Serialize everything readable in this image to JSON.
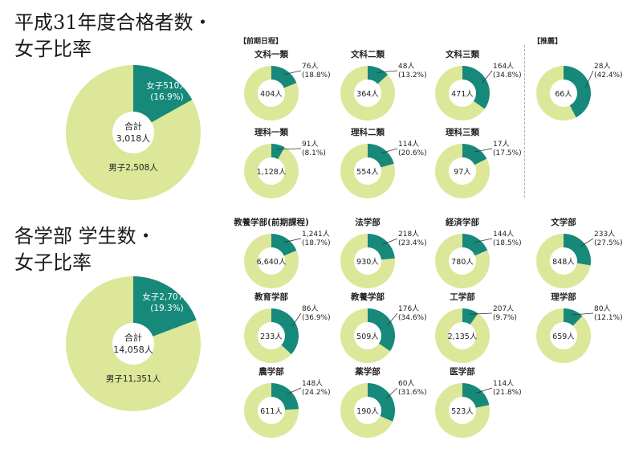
{
  "headings": {
    "exam": [
      "平成31年度合格者数・",
      "女子比率"
    ],
    "faculty": [
      "各学部 学生数・",
      "女子比率"
    ]
  },
  "section_labels": {
    "schedule": "【前期日程】",
    "recommend": "【推薦】"
  },
  "colors": {
    "female": "#16897a",
    "male": "#dce799",
    "text": "#222222",
    "divider": "#8fbcae"
  },
  "chart_data": [
    {
      "type": "pie",
      "title": "平成31年度合格者数・女子比率",
      "total_label": "合計",
      "total": "3,018人",
      "slices": [
        {
          "name": "女子",
          "value": 510,
          "label": "女子510人",
          "percent": 16.9,
          "percent_label": "(16.9%)"
        },
        {
          "name": "男子",
          "value": 2508,
          "label": "男子2,508人"
        }
      ]
    },
    {
      "type": "pie",
      "title": "各学部 学生数・女子比率",
      "total_label": "合計",
      "total": "14,058人",
      "slices": [
        {
          "name": "女子",
          "value": 2707,
          "label": "女子2,707人",
          "percent": 19.3,
          "percent_label": "(19.3%)"
        },
        {
          "name": "男子",
          "value": 11351,
          "label": "男子11,351人"
        }
      ]
    },
    {
      "type": "donut_group",
      "title": "【前期日程】",
      "items": [
        {
          "name": "文科一類",
          "female": 76,
          "female_label": "76人",
          "percent": 18.8,
          "percent_label": "(18.8%)",
          "total": 404,
          "total_label": "404人"
        },
        {
          "name": "文科二類",
          "female": 48,
          "female_label": "48人",
          "percent": 13.2,
          "percent_label": "(13.2%)",
          "total": 364,
          "total_label": "364人"
        },
        {
          "name": "文科三類",
          "female": 164,
          "female_label": "164人",
          "percent": 34.8,
          "percent_label": "(34.8%)",
          "total": 471,
          "total_label": "471人"
        },
        {
          "name": "理科一類",
          "female": 91,
          "female_label": "91人",
          "percent": 8.1,
          "percent_label": "(8.1%)",
          "total": 1128,
          "total_label": "1,128人"
        },
        {
          "name": "理科二類",
          "female": 114,
          "female_label": "114人",
          "percent": 20.6,
          "percent_label": "(20.6%)",
          "total": 554,
          "total_label": "554人"
        },
        {
          "name": "理科三類",
          "female": 17,
          "female_label": "17人",
          "percent": 17.5,
          "percent_label": "(17.5%)",
          "total": 97,
          "total_label": "97人"
        }
      ]
    },
    {
      "type": "donut_group",
      "title": "【推薦】",
      "items": [
        {
          "name": "",
          "female": 28,
          "female_label": "28人",
          "percent": 42.4,
          "percent_label": "(42.4%)",
          "total": 66,
          "total_label": "66人"
        }
      ]
    },
    {
      "type": "donut_group",
      "title": "",
      "items": [
        {
          "name": "教養学部(前期課程)",
          "female": 1241,
          "female_label": "1,241人",
          "percent": 18.7,
          "percent_label": "(18.7%)",
          "total": 6640,
          "total_label": "6,640人"
        },
        {
          "name": "法学部",
          "female": 218,
          "female_label": "218人",
          "percent": 23.4,
          "percent_label": "(23.4%)",
          "total": 930,
          "total_label": "930人"
        },
        {
          "name": "経済学部",
          "female": 144,
          "female_label": "144人",
          "percent": 18.5,
          "percent_label": "(18.5%)",
          "total": 780,
          "total_label": "780人"
        },
        {
          "name": "文学部",
          "female": 233,
          "female_label": "233人",
          "percent": 27.5,
          "percent_label": "(27.5%)",
          "total": 848,
          "total_label": "848人"
        },
        {
          "name": "教育学部",
          "female": 86,
          "female_label": "86人",
          "percent": 36.9,
          "percent_label": "(36.9%)",
          "total": 233,
          "total_label": "233人"
        },
        {
          "name": "教養学部",
          "female": 176,
          "female_label": "176人",
          "percent": 34.6,
          "percent_label": "(34.6%)",
          "total": 509,
          "total_label": "509人"
        },
        {
          "name": "工学部",
          "female": 207,
          "female_label": "207人",
          "percent": 9.7,
          "percent_label": "(9.7%)",
          "total": 2135,
          "total_label": "2,135人"
        },
        {
          "name": "理学部",
          "female": 80,
          "female_label": "80人",
          "percent": 12.1,
          "percent_label": "(12.1%)",
          "total": 659,
          "total_label": "659人"
        },
        {
          "name": "農学部",
          "female": 148,
          "female_label": "148人",
          "percent": 24.2,
          "percent_label": "(24.2%)",
          "total": 611,
          "total_label": "611人"
        },
        {
          "name": "薬学部",
          "female": 60,
          "female_label": "60人",
          "percent": 31.6,
          "percent_label": "(31.6%)",
          "total": 190,
          "total_label": "190人"
        },
        {
          "name": "医学部",
          "female": 114,
          "female_label": "114人",
          "percent": 21.8,
          "percent_label": "(21.8%)",
          "total": 523,
          "total_label": "523人"
        }
      ]
    }
  ]
}
